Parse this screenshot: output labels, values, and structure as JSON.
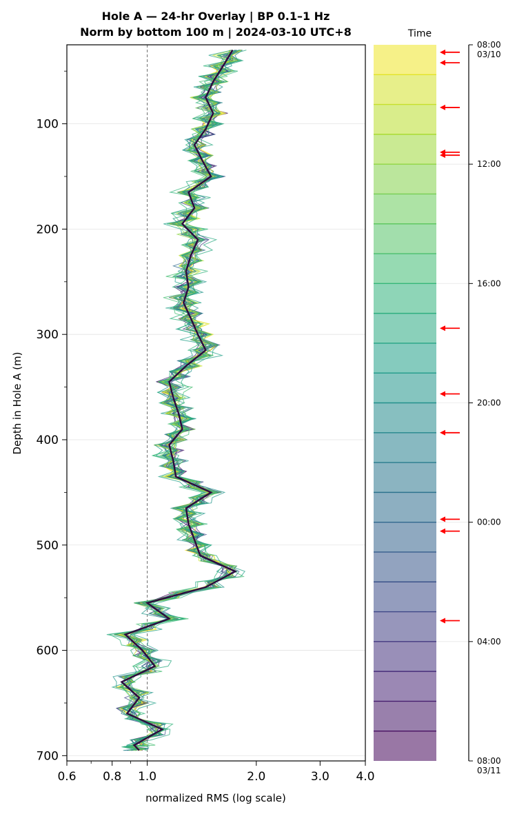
{
  "chart_data": {
    "type": "line",
    "title": "Hole A — 24-hr Overlay  |  BP 0.1–1 Hz",
    "subtitle": "Norm by bottom 100 m  |  2024-03-10 UTC+8",
    "xlabel": "normalized RMS  (log scale)",
    "ylabel": "Depth in Hole A (m)",
    "x_scale": "log",
    "xlim": [
      0.6,
      4.0
    ],
    "ylim": [
      705,
      25
    ],
    "x_ticks": [
      "0.6",
      "0.8",
      "1.0",
      "2.0",
      "3.0",
      "4.0"
    ],
    "y_ticks": [
      "100",
      "200",
      "300",
      "400",
      "500",
      "600",
      "700"
    ],
    "reference_line": {
      "x": 1.0,
      "style": "dashed",
      "color": "#808080"
    },
    "grid": "horizontal",
    "colormap": "viridis",
    "n_traces": 24,
    "time_axis": {
      "label": "Time",
      "ticks": [
        {
          "line1": "08:00",
          "line2": "03/10",
          "hours": 0
        },
        {
          "line1": "12:00",
          "line2": "",
          "hours": 4
        },
        {
          "line1": "16:00",
          "line2": "",
          "hours": 8
        },
        {
          "line1": "20:00",
          "line2": "",
          "hours": 12
        },
        {
          "line1": "00:00",
          "line2": "",
          "hours": 16
        },
        {
          "line1": "04:00",
          "line2": "",
          "hours": 20
        },
        {
          "line1": "08:00",
          "line2": "03/11",
          "hours": 24
        }
      ],
      "highlight_hours": [
        0.25,
        0.6,
        2.1,
        3.6,
        3.7,
        9.5,
        11.7,
        13.0,
        15.9,
        16.3,
        19.3
      ],
      "highlight_color": "#ff0000"
    },
    "profile_points": [
      {
        "depth": 30,
        "rms": 1.72
      },
      {
        "depth": 45,
        "rms": 1.62
      },
      {
        "depth": 60,
        "rms": 1.52
      },
      {
        "depth": 75,
        "rms": 1.45
      },
      {
        "depth": 90,
        "rms": 1.52
      },
      {
        "depth": 105,
        "rms": 1.45
      },
      {
        "depth": 120,
        "rms": 1.35
      },
      {
        "depth": 135,
        "rms": 1.42
      },
      {
        "depth": 150,
        "rms": 1.5
      },
      {
        "depth": 165,
        "rms": 1.3
      },
      {
        "depth": 180,
        "rms": 1.35
      },
      {
        "depth": 195,
        "rms": 1.25
      },
      {
        "depth": 210,
        "rms": 1.38
      },
      {
        "depth": 225,
        "rms": 1.32
      },
      {
        "depth": 240,
        "rms": 1.28
      },
      {
        "depth": 255,
        "rms": 1.3
      },
      {
        "depth": 270,
        "rms": 1.26
      },
      {
        "depth": 285,
        "rms": 1.32
      },
      {
        "depth": 300,
        "rms": 1.38
      },
      {
        "depth": 315,
        "rms": 1.45
      },
      {
        "depth": 330,
        "rms": 1.28
      },
      {
        "depth": 345,
        "rms": 1.15
      },
      {
        "depth": 360,
        "rms": 1.18
      },
      {
        "depth": 375,
        "rms": 1.22
      },
      {
        "depth": 390,
        "rms": 1.25
      },
      {
        "depth": 405,
        "rms": 1.15
      },
      {
        "depth": 420,
        "rms": 1.18
      },
      {
        "depth": 435,
        "rms": 1.2
      },
      {
        "depth": 450,
        "rms": 1.5
      },
      {
        "depth": 465,
        "rms": 1.28
      },
      {
        "depth": 480,
        "rms": 1.3
      },
      {
        "depth": 495,
        "rms": 1.35
      },
      {
        "depth": 510,
        "rms": 1.4
      },
      {
        "depth": 525,
        "rms": 1.75
      },
      {
        "depth": 540,
        "rms": 1.45
      },
      {
        "depth": 555,
        "rms": 1.0
      },
      {
        "depth": 570,
        "rms": 1.15
      },
      {
        "depth": 585,
        "rms": 0.87
      },
      {
        "depth": 600,
        "rms": 0.97
      },
      {
        "depth": 615,
        "rms": 1.05
      },
      {
        "depth": 630,
        "rms": 0.85
      },
      {
        "depth": 645,
        "rms": 0.95
      },
      {
        "depth": 660,
        "rms": 0.88
      },
      {
        "depth": 675,
        "rms": 1.1
      },
      {
        "depth": 690,
        "rms": 0.92
      },
      {
        "depth": 695,
        "rms": 0.95
      }
    ]
  }
}
